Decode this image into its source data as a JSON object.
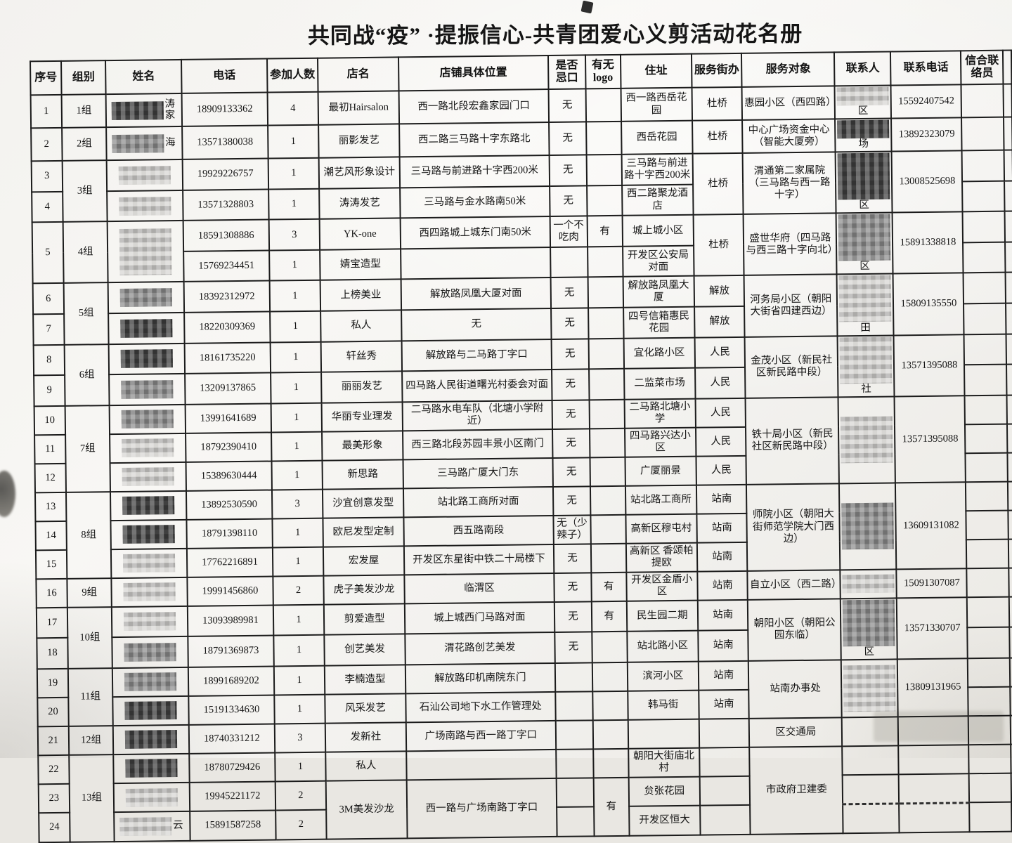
{
  "title": "共同战“疫” ·提振信心-共青团爱心义剪活动花名册",
  "table": {
    "header": [
      "序号",
      "组别",
      "姓名",
      "电话",
      "参加人数",
      "店名",
      "店铺具体位置",
      "是否忌口",
      "有无logo",
      "住址",
      "服务街办",
      "服务对象",
      "联系人",
      "联系电话",
      "信合联络员",
      ""
    ],
    "rows": [
      [
        "1",
        "1组",
        {
          "b": "d",
          "f": "涛家"
        },
        "18909133362",
        "4",
        "最初Hairsalon",
        "西一路北段宏鑫家园门口",
        "无",
        "",
        "西一路西岳花园",
        "杜桥",
        "惠园小区（西四路）",
        {
          "b": "l",
          "f": "区"
        },
        "15592407542",
        "",
        ""
      ],
      [
        "2",
        "2组",
        {
          "b": "m",
          "f": "海"
        },
        "13571380038",
        "1",
        "丽影发艺",
        "西二路三马路十字东路北",
        "无",
        "",
        "西岳花园",
        "杜桥",
        "中心广场资金中心（智能大厦旁）",
        {
          "b": "d",
          "f": "场"
        },
        "13892323079",
        "",
        ""
      ],
      [
        "3",
        {
          "t": "3组",
          "rs": 2
        },
        {
          "b": "l"
        },
        "19929226757",
        "1",
        "潮艺风形象设计",
        "三马路与前进路十字西200米",
        "无",
        "",
        "三马路与前进路十字西200米",
        {
          "t": "杜桥",
          "rs": 2
        },
        {
          "t": "渭通第二家属院（三马路与西一路十字）",
          "rs": 2
        },
        {
          "b": "d",
          "rs": 2,
          "f": "区"
        },
        {
          "t": "13008525698",
          "rs": 2
        },
        "",
        ""
      ],
      [
        "4",
        {
          "b": "l"
        },
        "13571328803",
        "1",
        "涛涛发艺",
        "三马路与金水路南50米",
        "无",
        "",
        "西二路聚龙酒店",
        "",
        ""
      ],
      [
        {
          "t": "5",
          "rs": 2
        },
        {
          "t": "4组",
          "rs": 2
        },
        {
          "b": "l",
          "rs": 2
        },
        "18591308886",
        "3",
        "YK-one",
        "西四路城上城东门南50米",
        "一个不吃肉",
        "有",
        "城上城小区",
        {
          "t": "杜桥",
          "rs": 2
        },
        {
          "t": "盛世华府（四马路与西三路十字向北）",
          "rs": 2
        },
        {
          "b": "m",
          "rs": 2,
          "f": "区"
        },
        {
          "t": "15891338818",
          "rs": 2
        },
        "",
        ""
      ],
      [
        "15769234451",
        "1",
        "婧宝造型",
        "",
        "",
        "",
        "开发区公安局对面",
        "",
        ""
      ],
      [
        "6",
        {
          "t": "5组",
          "rs": 2
        },
        {
          "b": "m"
        },
        "18392312972",
        "1",
        "上榜美业",
        "解放路凤凰大厦对面",
        "无",
        "",
        "解放路凤凰大厦",
        "解放",
        {
          "t": "河务局小区（朝阳大街省四建西边）",
          "rs": 2
        },
        {
          "b": "l",
          "rs": 2,
          "f": "田"
        },
        {
          "t": "15809135550",
          "rs": 2
        },
        "",
        ""
      ],
      [
        "7",
        {
          "b": "d"
        },
        "18220309369",
        "1",
        "私人",
        "无",
        "无",
        "",
        "四号信箱惠民花园",
        "解放",
        "",
        ""
      ],
      [
        "8",
        {
          "t": "6组",
          "rs": 2
        },
        {
          "b": "d"
        },
        "18161735220",
        "1",
        "轩丝秀",
        "解放路与二马路丁字口",
        "无",
        "",
        "宜化路小区",
        "人民",
        {
          "t": "金茂小区（新民社区新民路中段）",
          "rs": 2
        },
        {
          "b": "l",
          "rs": 2,
          "f": "社"
        },
        {
          "t": "13571395088",
          "rs": 2
        },
        "",
        ""
      ],
      [
        "9",
        {
          "b": "m"
        },
        "13209137865",
        "1",
        "丽丽发艺",
        "四马路人民街道曙光村委会对面",
        "无",
        "",
        "二监菜市场",
        "人民",
        "",
        ""
      ],
      [
        "10",
        {
          "t": "7组",
          "rs": 3
        },
        {
          "b": "m"
        },
        "13991641689",
        "1",
        "华丽专业理发",
        "二马路水电车队（北塘小学附近）",
        "无",
        "",
        "二马路北塘小学",
        "人民",
        {
          "t": "铁十局小区（新民社区新民路中段）",
          "rs": 3
        },
        {
          "b": "l",
          "rs": 3
        },
        {
          "t": "13571395088",
          "rs": 3
        },
        "",
        ""
      ],
      [
        "11",
        {
          "b": "l"
        },
        "18792390410",
        "1",
        "最美形象",
        "西三路北段苏园丰景小区南门",
        "无",
        "",
        "四马路兴达小区",
        "人民",
        "",
        ""
      ],
      [
        "12",
        {
          "b": "l"
        },
        "15389630444",
        "1",
        "新思路",
        "三马路广厦大门东",
        "无",
        "",
        "广厦丽景",
        "人民",
        "",
        ""
      ],
      [
        "13",
        {
          "t": "8组",
          "rs": 3
        },
        {
          "b": "d"
        },
        "13892530590",
        "3",
        "沙宜创意发型",
        "站北路工商所对面",
        "无",
        "",
        "站北路工商所",
        "站南",
        {
          "t": "师院小区（朝阳大街师范学院大门西边）",
          "rs": 3
        },
        {
          "b": "m",
          "rs": 3
        },
        {
          "t": "13609131082",
          "rs": 3
        },
        "",
        ""
      ],
      [
        "14",
        {
          "b": "d"
        },
        "18791398110",
        "1",
        "欧尼发型定制",
        "西五路南段",
        "无（少辣子）",
        "",
        "高新区穆屯村",
        "站南",
        "",
        ""
      ],
      [
        "15",
        {
          "b": "l"
        },
        "17762216891",
        "1",
        "宏发屋",
        "开发区东星街中铁二十局楼下",
        "无",
        "",
        "高新区 香颂帕提欧",
        "站南",
        "",
        ""
      ],
      [
        "16",
        "9组",
        {
          "b": "l"
        },
        "19991456860",
        "2",
        "虎子美发沙龙",
        "临渭区",
        "无",
        "有",
        "开发区金盾小区",
        "站南",
        "自立小区（西二路）",
        {
          "b": "l"
        },
        "15091307087",
        "",
        ""
      ],
      [
        "17",
        {
          "t": "10组",
          "rs": 2
        },
        {
          "b": "l"
        },
        "13093989981",
        "1",
        "剪爱造型",
        "城上城西门马路对面",
        "无",
        "有",
        "民生园二期",
        "站南",
        {
          "t": "朝阳小区（朝阳公园东临）",
          "rs": 2
        },
        {
          "b": "m",
          "rs": 2,
          "f": "区"
        },
        {
          "t": "13571330707",
          "rs": 2
        },
        "",
        ""
      ],
      [
        "18",
        {
          "b": "m"
        },
        "18791369873",
        "1",
        "创艺美发",
        "渭花路创艺美发",
        "无",
        "",
        "站北路小区",
        "站南",
        "",
        ""
      ],
      [
        "19",
        {
          "t": "11组",
          "rs": 2
        },
        {
          "b": "m"
        },
        "18991689202",
        "1",
        "李楠造型",
        "解放路印机南院东门",
        "",
        "",
        "滨河小区",
        "站南",
        {
          "t": "站南办事处",
          "rs": 2
        },
        {
          "b": "l",
          "rs": 2
        },
        {
          "t": "13809131965",
          "rs": 2
        },
        "",
        ""
      ],
      [
        "20",
        {
          "b": "d"
        },
        "15191334630",
        "1",
        "风采发艺",
        "石汕公司地下水工作管理处",
        "",
        "",
        "韩马街",
        "站南",
        "",
        ""
      ],
      [
        "21",
        "12组",
        {
          "b": "d"
        },
        "18740331212",
        "3",
        "发新社",
        "广场南路与西一路丁字口",
        "",
        "",
        "",
        "",
        "区交通局",
        "",
        "",
        "",
        ""
      ],
      [
        "22",
        {
          "t": "13组",
          "rs": 3
        },
        {
          "b": "d"
        },
        "18780729426",
        "1",
        "私人",
        "",
        "",
        "",
        "朝阳大街庙北村",
        "",
        {
          "t": "市政府卫建委",
          "rs": 3
        },
        "",
        "",
        "",
        ""
      ],
      [
        "23",
        {
          "b": "l"
        },
        "19945221172",
        "2",
        {
          "t": "3M美发沙龙",
          "rs": 2
        },
        {
          "t": "西一路与广场南路丁字口",
          "rs": 2
        },
        "",
        {
          "t": "有",
          "rs": 2
        },
        "贠张花园",
        "",
        "",
        "",
        "",
        ""
      ],
      [
        "24",
        {
          "b": "l",
          "f": "云"
        },
        "15891587258",
        "2",
        "",
        "开发区恒大",
        "",
        {
          "cls": "dash"
        },
        {
          "cls": "dash"
        },
        "",
        ""
      ]
    ]
  }
}
